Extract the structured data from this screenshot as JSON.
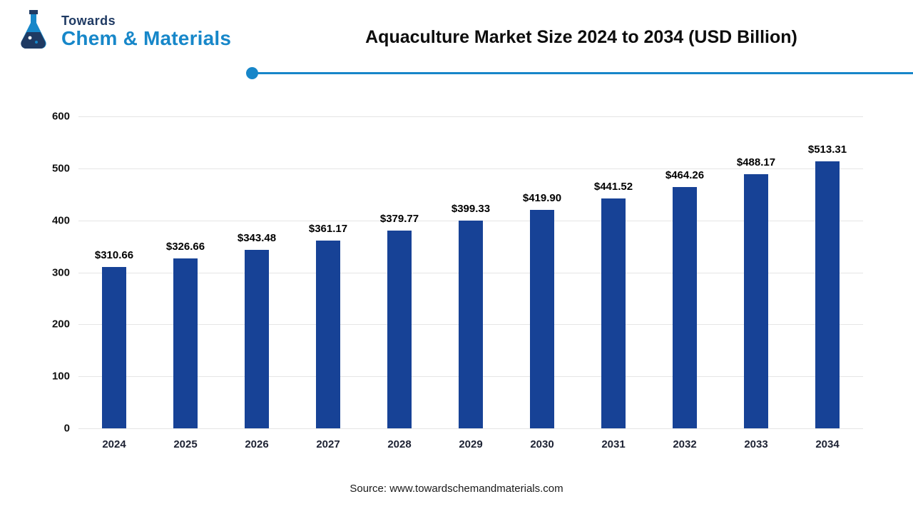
{
  "logo": {
    "top": "Towards",
    "bottom": "Chem & Materials"
  },
  "header": {
    "title": "Aquaculture Market Size 2024 to 2034 (USD Billion)"
  },
  "footer": {
    "source": "Source: www.towardschemandmaterials.com"
  },
  "colors": {
    "bar": "#174296",
    "accent_line": "#1786c9",
    "logo_navy": "#1f3a63",
    "logo_cyan": "#1787c9",
    "gridline": "#e5e5e5"
  },
  "chart_data": {
    "type": "bar",
    "title": "Aquaculture Market Size 2024 to 2034 (USD Billion)",
    "categories": [
      "2024",
      "2025",
      "2026",
      "2027",
      "2028",
      "2029",
      "2030",
      "2031",
      "2032",
      "2033",
      "2034"
    ],
    "values": [
      310.66,
      326.66,
      343.48,
      361.17,
      379.77,
      399.33,
      419.9,
      441.52,
      464.26,
      488.17,
      513.31
    ],
    "value_labels": [
      "$310.66",
      "$326.66",
      "$343.48",
      "$361.17",
      "$379.77",
      "$399.33",
      "$419.90",
      "$441.52",
      "$464.26",
      "$488.17",
      "$513.31"
    ],
    "xlabel": "",
    "ylabel": "",
    "ylim": [
      0,
      600
    ],
    "yticks": [
      0,
      100,
      200,
      300,
      400,
      500,
      600
    ],
    "grid": true,
    "legend": "none",
    "bar_color": "#174296"
  }
}
